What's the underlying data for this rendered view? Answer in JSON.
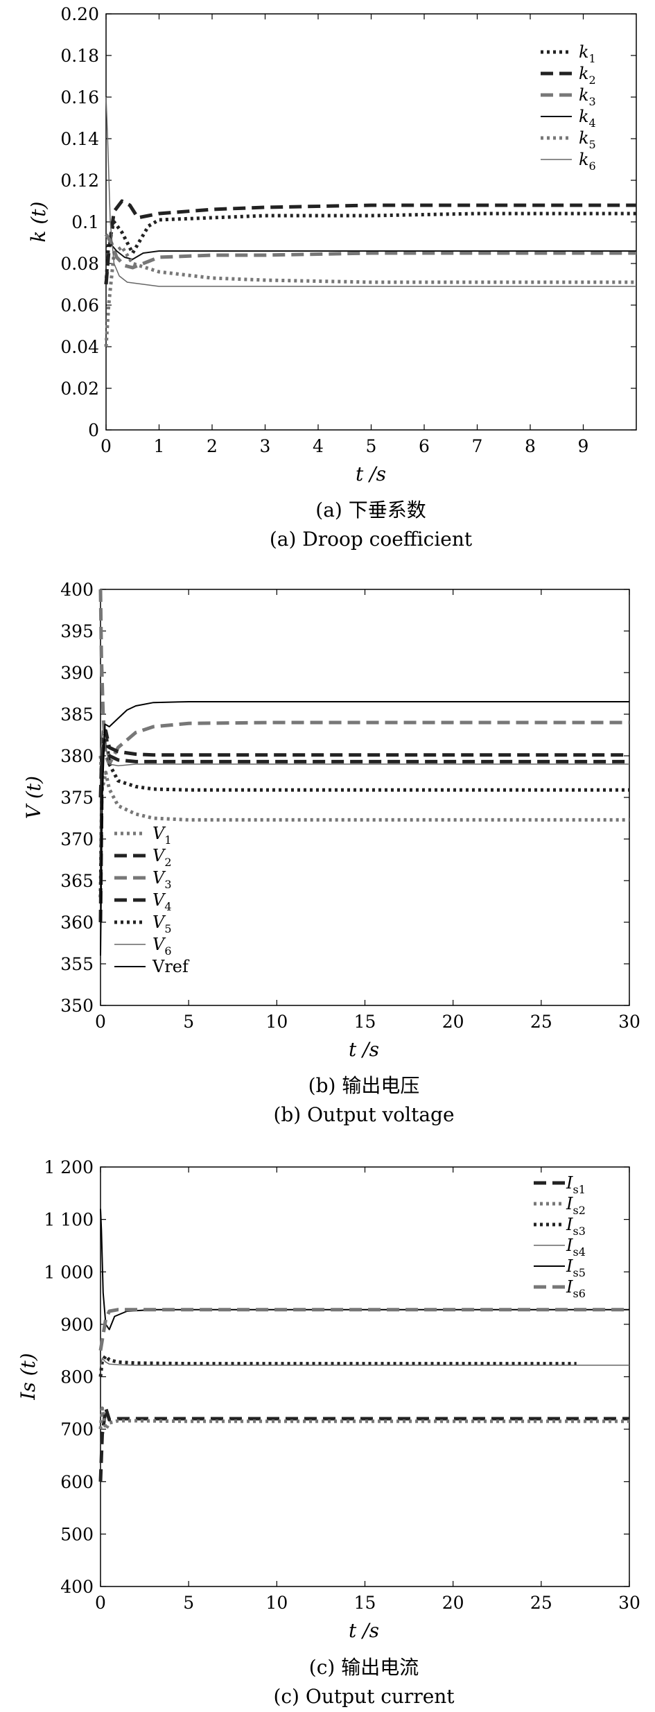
{
  "chart_data": [
    {
      "type": "line",
      "id": "a",
      "caption_cn": "(a) 下垂系数",
      "caption_en": "(a) Droop coefficient",
      "xlabel": "t /s",
      "ylabel": "k (t)",
      "xlim": [
        0,
        10
      ],
      "ylim": [
        0,
        0.2
      ],
      "xticks": [
        "0",
        "1",
        "2",
        "3",
        "4",
        "5",
        "6",
        "7",
        "8",
        "9"
      ],
      "xtick_values": [
        0,
        1,
        2,
        3,
        4,
        5,
        6,
        7,
        8,
        9
      ],
      "yticks": [
        "0",
        "0.02",
        "0.04",
        "0.06",
        "0.08",
        "0.1",
        "0.12",
        "0.14",
        "0.16",
        "0.18",
        "0.20"
      ],
      "ytick_values": [
        0,
        0.02,
        0.04,
        0.06,
        0.08,
        0.1,
        0.12,
        0.14,
        0.16,
        0.18,
        0.2
      ],
      "legend_position": "top-right",
      "series": [
        {
          "name": "k1",
          "label_main": "k",
          "label_sub": "1",
          "style": "dotted",
          "color": "#222222",
          "width": 5,
          "x": [
            0,
            0.05,
            0.15,
            0.3,
            0.5,
            0.8,
            1,
            2,
            3,
            5,
            7,
            10
          ],
          "y": [
            0.07,
            0.09,
            0.1,
            0.095,
            0.085,
            0.098,
            0.101,
            0.102,
            0.103,
            0.103,
            0.104,
            0.104
          ]
        },
        {
          "name": "k2",
          "label_main": "k",
          "label_sub": "2",
          "style": "dashed",
          "color": "#222222",
          "width": 5,
          "x": [
            0,
            0.05,
            0.15,
            0.3,
            0.45,
            0.6,
            0.8,
            1,
            2,
            3,
            5,
            7,
            10
          ],
          "y": [
            0.07,
            0.085,
            0.105,
            0.11,
            0.108,
            0.102,
            0.103,
            0.104,
            0.106,
            0.107,
            0.108,
            0.108,
            0.108
          ]
        },
        {
          "name": "k3",
          "label_main": "k",
          "label_sub": "3",
          "style": "dashed",
          "color": "#777777",
          "width": 5,
          "x": [
            0,
            0.1,
            0.2,
            0.35,
            0.5,
            0.8,
            1,
            2,
            3,
            5,
            10
          ],
          "y": [
            0.094,
            0.09,
            0.083,
            0.079,
            0.078,
            0.081,
            0.083,
            0.084,
            0.084,
            0.085,
            0.085
          ]
        },
        {
          "name": "k4",
          "label_main": "k",
          "label_sub": "4",
          "style": "solid",
          "color": "#111111",
          "width": 2,
          "x": [
            0,
            0.1,
            0.2,
            0.35,
            0.5,
            0.7,
            1,
            2,
            3,
            5,
            10
          ],
          "y": [
            0.088,
            0.089,
            0.086,
            0.083,
            0.082,
            0.085,
            0.086,
            0.086,
            0.086,
            0.086,
            0.086
          ]
        },
        {
          "name": "k5",
          "label_main": "k",
          "label_sub": "5",
          "style": "dotted",
          "color": "#777777",
          "width": 5,
          "x": [
            0,
            0.05,
            0.15,
            0.3,
            0.5,
            1,
            2,
            3,
            5,
            7,
            10
          ],
          "y": [
            0.04,
            0.06,
            0.085,
            0.088,
            0.08,
            0.076,
            0.073,
            0.072,
            0.071,
            0.071,
            0.071
          ]
        },
        {
          "name": "k6",
          "label_main": "k",
          "label_sub": "6",
          "style": "solid",
          "color": "#666666",
          "width": 1.5,
          "x": [
            0,
            0.03,
            0.08,
            0.15,
            0.25,
            0.4,
            0.7,
            1,
            2,
            3,
            5,
            10
          ],
          "y": [
            0.16,
            0.14,
            0.1,
            0.08,
            0.074,
            0.071,
            0.07,
            0.069,
            0.069,
            0.069,
            0.069,
            0.069
          ]
        }
      ]
    },
    {
      "type": "line",
      "id": "b",
      "caption_cn": "(b) 输出电压",
      "caption_en": "(b) Output voltage",
      "xlabel": "t /s",
      "ylabel": "V (t)",
      "xlim": [
        0,
        30
      ],
      "ylim": [
        350,
        400
      ],
      "xticks": [
        "0",
        "5",
        "10",
        "15",
        "20",
        "25",
        "30"
      ],
      "xtick_values": [
        0,
        5,
        10,
        15,
        20,
        25,
        30
      ],
      "yticks": [
        "350",
        "355",
        "360",
        "365",
        "370",
        "375",
        "380",
        "385",
        "390",
        "395",
        "400"
      ],
      "ytick_values": [
        350,
        355,
        360,
        365,
        370,
        375,
        380,
        385,
        390,
        395,
        400
      ],
      "legend_position": "bottom-left",
      "series": [
        {
          "name": "V1",
          "label_main": "V",
          "label_sub": "1",
          "style": "dotted",
          "color": "#777777",
          "width": 5,
          "x": [
            0,
            0.1,
            0.3,
            0.5,
            1,
            2,
            3,
            5,
            10,
            20,
            30
          ],
          "y": [
            380,
            376,
            378,
            376,
            374,
            373,
            372.5,
            372.3,
            372.3,
            372.3,
            372.3
          ]
        },
        {
          "name": "V2",
          "label_main": "V",
          "label_sub": "2",
          "style": "dashed",
          "color": "#222222",
          "width": 5,
          "x": [
            0,
            0.1,
            0.3,
            0.5,
            1,
            2,
            3,
            5,
            10,
            20,
            30
          ],
          "y": [
            375,
            382,
            381,
            380,
            379.5,
            379.3,
            379.3,
            379.3,
            379.3,
            379.3,
            379.3
          ]
        },
        {
          "name": "V3",
          "label_main": "V",
          "label_sub": "3",
          "style": "dashed",
          "color": "#777777",
          "width": 5,
          "x": [
            0,
            0.05,
            0.15,
            0.3,
            0.5,
            1,
            2,
            3,
            5,
            10,
            20,
            30
          ],
          "y": [
            400,
            392,
            385,
            380,
            379,
            381,
            382.8,
            383.5,
            383.9,
            384,
            384,
            384
          ]
        },
        {
          "name": "V4",
          "label_main": "V",
          "label_sub": "4",
          "style": "dashed",
          "color": "#222222",
          "width": 5,
          "x": [
            0,
            0.1,
            0.3,
            0.5,
            1,
            2,
            3,
            5,
            10,
            20,
            30
          ],
          "y": [
            360,
            380,
            383,
            381,
            380.5,
            380.2,
            380.1,
            380.1,
            380.1,
            380.1,
            380.1
          ]
        },
        {
          "name": "V5",
          "label_main": "V",
          "label_sub": "5",
          "style": "dotted",
          "color": "#222222",
          "width": 5,
          "x": [
            0,
            0.1,
            0.3,
            0.5,
            1,
            2,
            3,
            5,
            10,
            20,
            30
          ],
          "y": [
            363,
            380,
            383,
            379,
            377,
            376.3,
            376,
            375.9,
            375.9,
            375.9,
            375.9
          ]
        },
        {
          "name": "V6",
          "label_main": "V",
          "label_sub": "6",
          "style": "solid",
          "color": "#666666",
          "width": 1.5,
          "x": [
            0,
            0.1,
            0.3,
            0.5,
            1,
            2,
            3,
            5,
            10,
            20,
            30
          ],
          "y": [
            380,
            383,
            381,
            379,
            378.8,
            379,
            379,
            379,
            379,
            379,
            379
          ]
        },
        {
          "name": "Vref",
          "label_main": "Vref",
          "label_sub": "",
          "style": "solid",
          "color": "#000000",
          "width": 2,
          "x": [
            0,
            0.1,
            0.25,
            0.5,
            1,
            1.5,
            2,
            3,
            5,
            10,
            20,
            30
          ],
          "y": [
            356,
            375,
            383.8,
            383.5,
            384.5,
            385.5,
            386,
            386.4,
            386.5,
            386.5,
            386.5,
            386.5
          ]
        }
      ]
    },
    {
      "type": "line",
      "id": "c",
      "caption_cn": "(c) 输出电流",
      "caption_en": "(c) Output current",
      "xlabel": "t /s",
      "ylabel": "Is (t)",
      "xlim": [
        0,
        30
      ],
      "ylim": [
        400,
        1200
      ],
      "xticks": [
        "0",
        "5",
        "10",
        "15",
        "20",
        "25",
        "30"
      ],
      "xtick_values": [
        0,
        5,
        10,
        15,
        20,
        25,
        30
      ],
      "yticks": [
        "400",
        "500",
        "600",
        "700",
        "800",
        "900",
        "1 000",
        "1 100",
        "1 200"
      ],
      "ytick_values": [
        400,
        500,
        600,
        700,
        800,
        900,
        1000,
        1100,
        1200
      ],
      "legend_position": "top-right",
      "series": [
        {
          "name": "Is1",
          "label_main": "I",
          "label_sub": "s1",
          "style": "dashed",
          "color": "#222222",
          "width": 5,
          "x": [
            0,
            0.1,
            0.3,
            0.5,
            1,
            2,
            5,
            10,
            20,
            30
          ],
          "y": [
            600,
            690,
            740,
            718,
            720,
            720,
            720,
            720,
            720,
            720
          ]
        },
        {
          "name": "Is2",
          "label_main": "I",
          "label_sub": "s2",
          "style": "dotted",
          "color": "#777777",
          "width": 5,
          "x": [
            0,
            0.1,
            0.3,
            0.5,
            1,
            2,
            5,
            10,
            20,
            30
          ],
          "y": [
            700,
            740,
            700,
            712,
            716,
            716,
            715,
            715,
            715,
            715
          ]
        },
        {
          "name": "Is3",
          "label_main": "I",
          "label_sub": "s3",
          "style": "dotted",
          "color": "#222222",
          "width": 5,
          "x": [
            0,
            0.1,
            0.3,
            0.5,
            1,
            2,
            5,
            10,
            20,
            27
          ],
          "y": [
            800,
            830,
            840,
            832,
            828,
            826,
            825,
            825,
            825,
            825
          ]
        },
        {
          "name": "Is4",
          "label_main": "I",
          "label_sub": "s4",
          "style": "solid",
          "color": "#666666",
          "width": 1.5,
          "x": [
            0,
            0.1,
            0.3,
            0.5,
            1,
            2,
            5,
            10,
            20,
            30
          ],
          "y": [
            820,
            835,
            828,
            824,
            823,
            822,
            822,
            822,
            822,
            822
          ]
        },
        {
          "name": "Is5",
          "label_main": "I",
          "label_sub": "s5",
          "style": "solid",
          "color": "#000000",
          "width": 2,
          "x": [
            0,
            0.05,
            0.15,
            0.3,
            0.5,
            0.8,
            1.5,
            3,
            5,
            10,
            20,
            30
          ],
          "y": [
            1120,
            1080,
            960,
            900,
            890,
            915,
            925,
            928,
            928,
            928,
            928,
            928
          ]
        },
        {
          "name": "Is6",
          "label_main": "I",
          "label_sub": "s6",
          "style": "dashed",
          "color": "#777777",
          "width": 5,
          "x": [
            0,
            0.1,
            0.3,
            0.5,
            1,
            2,
            5,
            10,
            20,
            30
          ],
          "y": [
            850,
            870,
            910,
            925,
            928,
            928,
            928,
            928,
            928,
            928
          ]
        }
      ]
    }
  ]
}
